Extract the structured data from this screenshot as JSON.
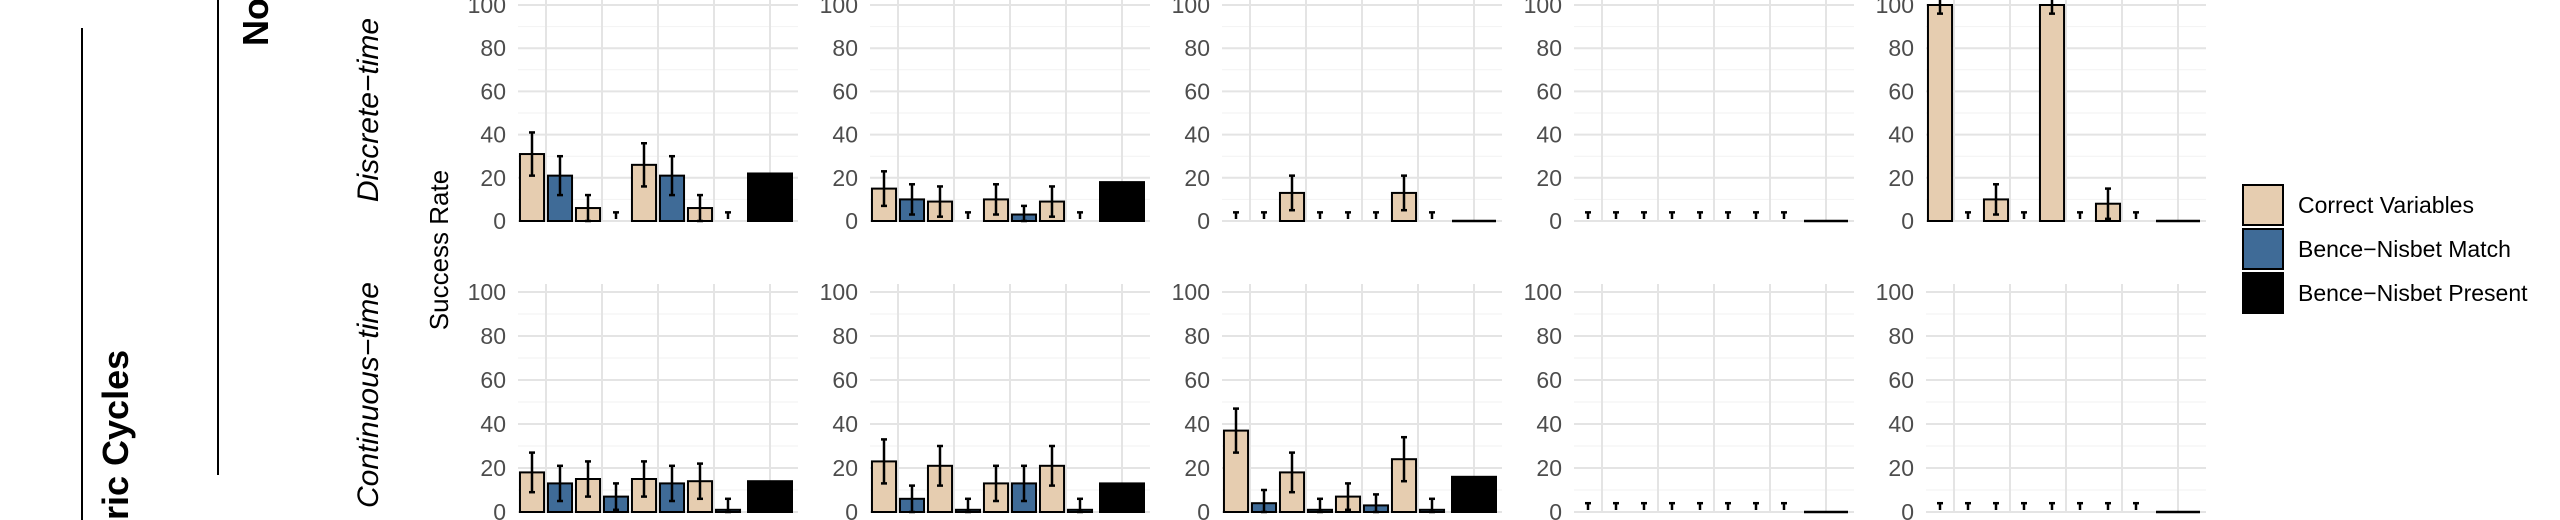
{
  "figure": {
    "outer_strip": "ric Cycles",
    "top_strip": "No",
    "y_axis_label": "Success Rate",
    "row_labels": [
      "Discrete−time",
      "Continuous−time"
    ]
  },
  "legend": {
    "items": [
      {
        "label": "Correct Variables",
        "color": "#e6cdb0"
      },
      {
        "label": "Bence−Nisbet Match",
        "color": "#3f6b97"
      },
      {
        "label": "Bence−Nisbet Present",
        "color": "#000000"
      }
    ]
  },
  "y_ticks": [
    "0",
    "20",
    "40",
    "60",
    "80",
    "100"
  ],
  "chart_data": {
    "type": "bar",
    "ylim": [
      0,
      100
    ],
    "grid": true,
    "legend_position": "right",
    "series": [
      {
        "name": "Correct Variables",
        "color": "#e6cdb0"
      },
      {
        "name": "Bence−Nisbet Match",
        "color": "#3f6b97"
      },
      {
        "name": "Bence−Nisbet Present",
        "color": "#000000"
      }
    ],
    "panels": [
      [
        {
          "bars": [
            [
              31,
              10
            ],
            [
              21,
              9
            ],
            [
              6,
              6
            ],
            [
              0,
              4
            ],
            [
              26,
              10
            ],
            [
              21,
              9
            ],
            [
              6,
              6
            ],
            [
              0,
              4
            ]
          ],
          "present": 22
        },
        {
          "bars": [
            [
              15,
              8
            ],
            [
              10,
              7
            ],
            [
              9,
              7
            ],
            [
              0,
              4
            ],
            [
              10,
              7
            ],
            [
              3,
              4
            ],
            [
              9,
              7
            ],
            [
              0,
              4
            ]
          ],
          "present": 18
        },
        {
          "bars": [
            [
              0,
              4
            ],
            [
              0,
              4
            ],
            [
              13,
              8
            ],
            [
              0,
              4
            ],
            [
              0,
              4
            ],
            [
              0,
              4
            ],
            [
              13,
              8
            ],
            [
              0,
              4
            ]
          ],
          "present": 0
        },
        {
          "bars": [
            [
              0,
              4
            ],
            [
              0,
              4
            ],
            [
              0,
              4
            ],
            [
              0,
              4
            ],
            [
              0,
              4
            ],
            [
              0,
              4
            ],
            [
              0,
              4
            ],
            [
              0,
              4
            ]
          ],
          "present": 0
        },
        {
          "bars": [
            [
              100,
              4
            ],
            [
              0,
              4
            ],
            [
              10,
              7
            ],
            [
              0,
              4
            ],
            [
              100,
              4
            ],
            [
              0,
              4
            ],
            [
              8,
              7
            ],
            [
              0,
              4
            ]
          ],
          "present": 0
        }
      ],
      [
        {
          "bars": [
            [
              18,
              9
            ],
            [
              13,
              8
            ],
            [
              15,
              8
            ],
            [
              7,
              6
            ],
            [
              15,
              8
            ],
            [
              13,
              8
            ],
            [
              14,
              8
            ],
            [
              1,
              5
            ]
          ],
          "present": 14
        },
        {
          "bars": [
            [
              23,
              10
            ],
            [
              6,
              6
            ],
            [
              21,
              9
            ],
            [
              1,
              5
            ],
            [
              13,
              8
            ],
            [
              13,
              8
            ],
            [
              21,
              9
            ],
            [
              1,
              5
            ]
          ],
          "present": 13
        },
        {
          "bars": [
            [
              37,
              10
            ],
            [
              4,
              6
            ],
            [
              18,
              9
            ],
            [
              1,
              5
            ],
            [
              7,
              6
            ],
            [
              3,
              5
            ],
            [
              24,
              10
            ],
            [
              1,
              5
            ]
          ],
          "present": 16
        },
        {
          "bars": [
            [
              0,
              4
            ],
            [
              0,
              4
            ],
            [
              0,
              4
            ],
            [
              0,
              4
            ],
            [
              0,
              4
            ],
            [
              0,
              4
            ],
            [
              0,
              4
            ],
            [
              0,
              4
            ]
          ],
          "present": 0
        },
        {
          "bars": [
            [
              0,
              4
            ],
            [
              0,
              4
            ],
            [
              0,
              4
            ],
            [
              0,
              4
            ],
            [
              0,
              4
            ],
            [
              0,
              4
            ],
            [
              0,
              4
            ],
            [
              0,
              4
            ]
          ],
          "present": 0
        }
      ]
    ]
  }
}
